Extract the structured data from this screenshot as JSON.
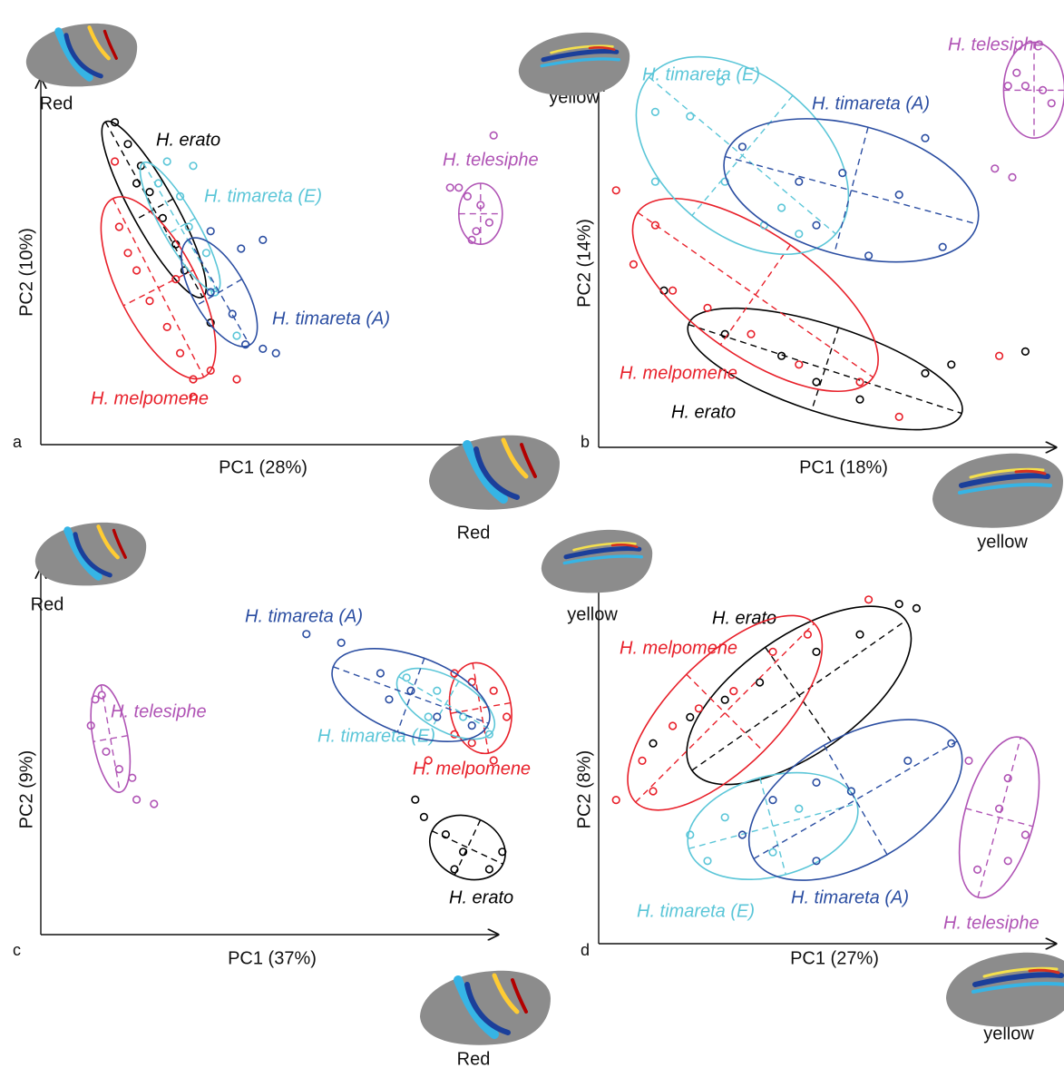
{
  "chart_data": [
    {
      "type": "scatter",
      "panel": "a",
      "x_label": "PC1 (28%)",
      "y_label": "PC2 (10%)",
      "x_image_label": "Red",
      "y_image_label": "Red",
      "xlim": [
        0,
        105
      ],
      "ylim": [
        0,
        84
      ],
      "series": [
        {
          "name": "H. erato",
          "color": "#000000",
          "x": [
            17,
            20,
            23,
            25,
            28,
            31,
            33,
            22,
            39
          ],
          "y": [
            74,
            69,
            64,
            58,
            52,
            46,
            40,
            60,
            28
          ],
          "ellipse": {
            "cx": 26,
            "cy": 54,
            "rx": 23,
            "ry": 5,
            "angle": -61
          }
        },
        {
          "name": "H. melpomene",
          "color": "#e8202a",
          "x": [
            17,
            18,
            22,
            25,
            29,
            32,
            35,
            39,
            20,
            31,
            35,
            45
          ],
          "y": [
            65,
            50,
            40,
            33,
            27,
            21,
            15,
            17,
            44,
            38,
            11,
            15
          ],
          "ellipse": {
            "cx": 27,
            "cy": 36,
            "rx": 23,
            "ry": 9,
            "angle": -63
          }
        },
        {
          "name": "H. timareta (E)",
          "color": "#5bc6d8",
          "x": [
            29,
            35,
            32,
            34,
            38,
            40,
            45,
            27
          ],
          "y": [
            65,
            64,
            57,
            50,
            44,
            35,
            25,
            60
          ],
          "ellipse": {
            "cx": 32,
            "cy": 50,
            "rx": 17,
            "ry": 4,
            "angle": -60
          }
        },
        {
          "name": "H. timareta (A)",
          "color": "#2b4ea2",
          "x": [
            39,
            46,
            51,
            44,
            47,
            51,
            54,
            39
          ],
          "y": [
            49,
            45,
            47,
            30,
            23,
            22,
            21,
            35
          ],
          "ellipse": {
            "cx": 41,
            "cy": 35,
            "rx": 14,
            "ry": 6,
            "angle": -60
          }
        },
        {
          "name": "H. telesiphe",
          "color": "#b054b5",
          "x": [
            98,
            101,
            103,
            100,
            96,
            104,
            99,
            94
          ],
          "y": [
            57,
            55,
            51,
            49,
            59,
            71,
            47,
            59
          ],
          "ellipse": {
            "cx": 101,
            "cy": 53,
            "rx": 5,
            "ry": 7,
            "angle": 0
          }
        }
      ]
    },
    {
      "type": "scatter",
      "panel": "b",
      "x_label": "PC1 (18%)",
      "y_label": "PC2 (14%)",
      "x_image_label": "yellow",
      "y_image_label": "yellow",
      "xlim": [
        0,
        105
      ],
      "ylim": [
        0,
        84
      ],
      "series": [
        {
          "name": "H. erato",
          "color": "#000000",
          "x": [
            15,
            29,
            42,
            50,
            60,
            75,
            81,
            98
          ],
          "y": [
            36,
            26,
            21,
            15,
            11,
            17,
            19,
            22
          ],
          "ellipse": {
            "cx": 52,
            "cy": 18,
            "rx": 33,
            "ry": 10,
            "angle": -18
          }
        },
        {
          "name": "H. melpomene",
          "color": "#e8202a",
          "x": [
            4,
            8,
            17,
            25,
            35,
            46,
            60,
            69,
            13,
            92
          ],
          "y": [
            59,
            42,
            36,
            32,
            26,
            19,
            15,
            7,
            51,
            21
          ],
          "ellipse": {
            "cx": 36,
            "cy": 35,
            "rx": 33,
            "ry": 14,
            "angle": -35
          }
        },
        {
          "name": "H. timareta (E)",
          "color": "#5bc6d8",
          "x": [
            13,
            21,
            29,
            38,
            46,
            13,
            28,
            42
          ],
          "y": [
            77,
            76,
            61,
            51,
            49,
            61,
            84,
            55
          ],
          "ellipse": {
            "cx": 33,
            "cy": 67,
            "rx": 28,
            "ry": 18,
            "angle": -40
          }
        },
        {
          "name": "H. timareta (A)",
          "color": "#2b4ea2",
          "x": [
            33,
            46,
            56,
            69,
            79,
            62,
            75,
            50
          ],
          "y": [
            69,
            61,
            63,
            58,
            46,
            44,
            71,
            51
          ],
          "ellipse": {
            "cx": 58,
            "cy": 59,
            "rx": 30,
            "ry": 15,
            "angle": -15
          }
        },
        {
          "name": "H. telesiphe",
          "color": "#b054b5",
          "x": [
            94,
            98,
            102,
            104,
            96,
            91,
            95
          ],
          "y": [
            83,
            83,
            82,
            79,
            86,
            64,
            62
          ],
          "ellipse": {
            "cx": 100,
            "cy": 82,
            "rx": 7,
            "ry": 11,
            "angle": 0
          }
        }
      ]
    },
    {
      "type": "scatter",
      "panel": "c",
      "x_label": "PC1 (37%)",
      "y_label": "PC2 (9%)",
      "x_image_label": "Red",
      "y_image_label": "Red",
      "xlim": [
        0,
        105
      ],
      "ylim": [
        0,
        84
      ],
      "series": [
        {
          "name": "H. erato",
          "color": "#000000",
          "x": [
            88,
            93,
            97,
            103,
            106,
            95,
            86
          ],
          "y": [
            27,
            23,
            19,
            15,
            19,
            15,
            31
          ],
          "ellipse": {
            "cx": 98,
            "cy": 20,
            "rx": 9,
            "ry": 7,
            "angle": -25
          }
        },
        {
          "name": "H. melpomene",
          "color": "#e8202a",
          "x": [
            95,
            99,
            104,
            107,
            99,
            104,
            89,
            95
          ],
          "y": [
            60,
            58,
            56,
            50,
            44,
            40,
            40,
            46
          ],
          "ellipse": {
            "cx": 101,
            "cy": 52,
            "rx": 10.5,
            "ry": 7,
            "angle": -80
          }
        },
        {
          "name": "H. timareta (E)",
          "color": "#5bc6d8",
          "x": [
            84,
            91,
            97,
            103,
            89
          ],
          "y": [
            59,
            56,
            50,
            46,
            50
          ],
          "ellipse": {
            "cx": 93,
            "cy": 53,
            "rx": 12.5,
            "ry": 6,
            "angle": -30
          }
        },
        {
          "name": "H. timareta (A)",
          "color": "#2b4ea2",
          "x": [
            61,
            69,
            78,
            85,
            91,
            99,
            80
          ],
          "y": [
            69,
            67,
            60,
            56,
            50,
            48,
            54
          ],
          "ellipse": {
            "cx": 85,
            "cy": 55,
            "rx": 19,
            "ry": 9,
            "angle": -20
          }
        },
        {
          "name": "H. telesiphe",
          "color": "#b054b5",
          "x": [
            12.5,
            11.5,
            15,
            18,
            21,
            22,
            26,
            14
          ],
          "y": [
            54,
            48,
            42,
            38,
            36,
            31,
            30,
            55
          ],
          "ellipse": {
            "cx": 16,
            "cy": 45,
            "rx": 12.5,
            "ry": 4,
            "angle": -80
          }
        }
      ]
    },
    {
      "type": "scatter",
      "panel": "d",
      "x_label": "PC1 (27%)",
      "y_label": "PC2 (8%)",
      "x_image_label": "yellow",
      "y_image_label": "yellow",
      "xlim": [
        0,
        105
      ],
      "ylim": [
        0,
        84
      ],
      "series": [
        {
          "name": "H. erato",
          "color": "#000000",
          "x": [
            12.5,
            21,
            29,
            37,
            50,
            60,
            69,
            73
          ],
          "y": [
            46,
            52,
            56,
            60,
            67,
            71,
            78,
            77
          ],
          "ellipse": {
            "cx": 46,
            "cy": 57,
            "rx": 30,
            "ry": 13.5,
            "angle": 35
          }
        },
        {
          "name": "H. melpomene",
          "color": "#e8202a",
          "x": [
            4,
            10,
            17,
            23,
            31,
            40,
            48,
            62,
            12.5
          ],
          "y": [
            33,
            42,
            50,
            54,
            58,
            67,
            71,
            79,
            35
          ],
          "ellipse": {
            "cx": 29,
            "cy": 53,
            "rx": 29,
            "ry": 12.5,
            "angle": 45
          }
        },
        {
          "name": "H. timareta (E)",
          "color": "#5bc6d8",
          "x": [
            21,
            29,
            46,
            58,
            40,
            25
          ],
          "y": [
            25,
            29,
            31,
            35,
            21,
            19
          ],
          "ellipse": {
            "cx": 40,
            "cy": 27,
            "rx": 20,
            "ry": 11.5,
            "angle": 15
          }
        },
        {
          "name": "H. timareta (A)",
          "color": "#2b4ea2",
          "x": [
            40,
            50,
            58,
            71,
            81,
            50,
            33
          ],
          "y": [
            33,
            37,
            35,
            42,
            46,
            19,
            25
          ],
          "ellipse": {
            "cx": 59,
            "cy": 33,
            "rx": 27,
            "ry": 14.5,
            "angle": 30
          }
        },
        {
          "name": "H. telesiphe",
          "color": "#b054b5",
          "x": [
            94,
            92,
            98,
            94,
            87,
            85
          ],
          "y": [
            38,
            31,
            25,
            19,
            17,
            42
          ],
          "ellipse": {
            "cx": 92,
            "cy": 29,
            "rx": 19,
            "ry": 8,
            "angle": 75
          }
        }
      ]
    }
  ]
}
